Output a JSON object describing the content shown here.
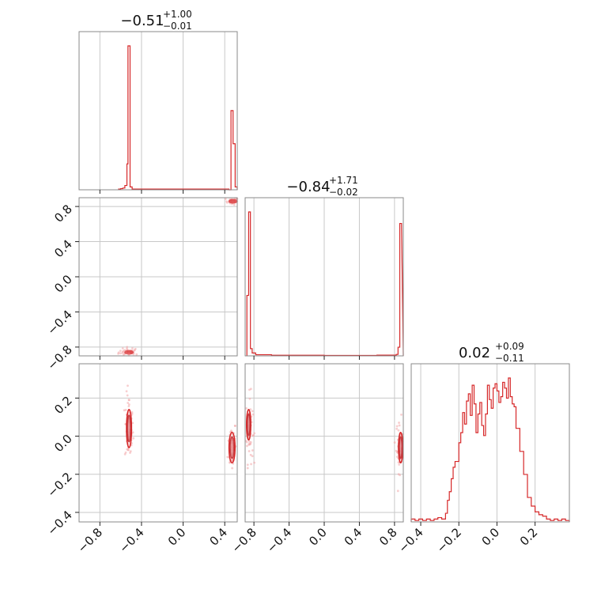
{
  "chart_data": {
    "type": "corner",
    "parameters": [
      {
        "title_value": "−0.51",
        "title_upper": "+1.00",
        "title_lower": "−0.01",
        "range": [
          -1.0,
          0.52
        ],
        "ticks": [
          -0.8,
          -0.4,
          0.0,
          0.4
        ],
        "tick_labels": [
          "−0.8",
          "−0.4",
          "0.0",
          "0.4"
        ],
        "hist_levels": [
          [
            -0.62,
            0.005
          ],
          [
            -0.6,
            0.008
          ],
          [
            -0.58,
            0.012
          ],
          [
            -0.56,
            0.03
          ],
          [
            -0.54,
            0.18
          ],
          [
            -0.53,
            1.0
          ],
          [
            -0.51,
            0.02
          ],
          [
            -0.49,
            0.005
          ],
          [
            0.44,
            0.0
          ],
          [
            0.46,
            0.55
          ],
          [
            0.48,
            0.32
          ],
          [
            0.5,
            0.02
          ]
        ]
      },
      {
        "title_value": "−0.84",
        "title_upper": "+1.71",
        "title_lower": "−0.02",
        "range": [
          -0.9,
          0.9
        ],
        "ticks": [
          -0.8,
          -0.4,
          0.0,
          0.4,
          0.8
        ],
        "tick_labels": [
          "−0.8",
          "−0.4",
          "0.0",
          "0.4",
          "0.8"
        ],
        "hist_levels": [
          [
            -0.88,
            0.42
          ],
          [
            -0.86,
            1.0
          ],
          [
            -0.84,
            0.05
          ],
          [
            -0.82,
            0.02
          ],
          [
            -0.78,
            0.008
          ],
          [
            -0.6,
            0.004
          ],
          [
            0.0,
            0.003
          ],
          [
            0.6,
            0.005
          ],
          [
            0.82,
            0.01
          ],
          [
            0.84,
            0.06
          ],
          [
            0.86,
            0.92
          ]
        ]
      },
      {
        "title_value": "0.02",
        "title_upper": "+0.09",
        "title_lower": "−0.11",
        "range": [
          -0.45,
          0.38
        ],
        "ticks": [
          -0.4,
          -0.2,
          0.0,
          0.2
        ],
        "tick_labels": [
          "−0.4",
          "−0.2",
          "0.0",
          "0.2"
        ],
        "y_ticks": [
          -0.4,
          -0.2,
          0.0,
          0.2
        ],
        "hist_levels": [
          [
            -0.45,
            0.02
          ],
          [
            -0.43,
            0.01
          ],
          [
            -0.41,
            0.02
          ],
          [
            -0.39,
            0.01
          ],
          [
            -0.37,
            0.02
          ],
          [
            -0.35,
            0.01
          ],
          [
            -0.33,
            0.02
          ],
          [
            -0.31,
            0.03
          ],
          [
            -0.29,
            0.02
          ],
          [
            -0.27,
            0.06
          ],
          [
            -0.26,
            0.15
          ],
          [
            -0.25,
            0.21
          ],
          [
            -0.24,
            0.3
          ],
          [
            -0.23,
            0.38
          ],
          [
            -0.22,
            0.42
          ],
          [
            -0.2,
            0.55
          ],
          [
            -0.19,
            0.62
          ],
          [
            -0.18,
            0.76
          ],
          [
            -0.17,
            0.68
          ],
          [
            -0.16,
            0.84
          ],
          [
            -0.15,
            0.89
          ],
          [
            -0.14,
            0.74
          ],
          [
            -0.13,
            0.95
          ],
          [
            -0.12,
            0.82
          ],
          [
            -0.11,
            0.62
          ],
          [
            -0.1,
            0.75
          ],
          [
            -0.09,
            0.83
          ],
          [
            -0.08,
            0.67
          ],
          [
            -0.07,
            0.6
          ],
          [
            -0.06,
            0.75
          ],
          [
            -0.05,
            0.95
          ],
          [
            -0.04,
            0.85
          ],
          [
            -0.03,
            0.79
          ],
          [
            -0.02,
            0.93
          ],
          [
            -0.01,
            0.96
          ],
          [
            0.0,
            0.91
          ],
          [
            0.01,
            0.83
          ],
          [
            0.02,
            0.87
          ],
          [
            0.03,
            0.97
          ],
          [
            0.04,
            0.93
          ],
          [
            0.05,
            0.86
          ],
          [
            0.06,
            1.0
          ],
          [
            0.07,
            0.87
          ],
          [
            0.08,
            0.82
          ],
          [
            0.09,
            0.8
          ],
          [
            0.1,
            0.65
          ],
          [
            0.12,
            0.49
          ],
          [
            0.14,
            0.33
          ],
          [
            0.16,
            0.17
          ],
          [
            0.18,
            0.11
          ],
          [
            0.2,
            0.07
          ],
          [
            0.22,
            0.05
          ],
          [
            0.24,
            0.04
          ],
          [
            0.26,
            0.02
          ],
          [
            0.28,
            0.01
          ],
          [
            0.3,
            0.02
          ],
          [
            0.32,
            0.01
          ],
          [
            0.34,
            0.02
          ],
          [
            0.36,
            0.01
          ]
        ]
      }
    ],
    "sample_clusters": [
      {
        "panel": "p1_vs_p0",
        "x_center": -0.52,
        "y_center": -0.86,
        "x_spread": 0.05,
        "y_spread": 0.03,
        "count": 40
      },
      {
        "panel": "p1_vs_p0",
        "x_center": 0.47,
        "y_center": 0.86,
        "x_spread": 0.03,
        "y_spread": 0.02,
        "count": 25
      },
      {
        "panel": "p2_vs_p0",
        "x_center": -0.52,
        "y_center": 0.04,
        "x_spread": 0.02,
        "y_spread": 0.09,
        "count": 60
      },
      {
        "panel": "p2_vs_p0",
        "x_center": 0.47,
        "y_center": -0.05,
        "x_spread": 0.02,
        "y_spread": 0.07,
        "count": 50
      },
      {
        "panel": "p2_vs_p1",
        "x_center": -0.85,
        "y_center": 0.04,
        "x_spread": 0.02,
        "y_spread": 0.09,
        "count": 60
      },
      {
        "panel": "p2_vs_p1",
        "x_center": 0.86,
        "y_center": -0.05,
        "x_spread": 0.02,
        "y_spread": 0.07,
        "count": 50
      }
    ],
    "contours": [
      {
        "panel": "p2_vs_p0",
        "x_center": -0.52,
        "y_center": 0.04,
        "x_radius": 0.015,
        "y_radius": 0.1
      },
      {
        "panel": "p2_vs_p0",
        "x_center": 0.47,
        "y_center": -0.06,
        "x_radius": 0.018,
        "y_radius": 0.08
      },
      {
        "panel": "p2_vs_p1",
        "x_center": -0.86,
        "y_center": 0.06,
        "x_radius": 0.015,
        "y_radius": 0.08
      },
      {
        "panel": "p2_vs_p1",
        "x_center": 0.87,
        "y_center": -0.06,
        "x_radius": 0.015,
        "y_radius": 0.08
      }
    ],
    "series_color": "#d62728",
    "grid": true
  }
}
